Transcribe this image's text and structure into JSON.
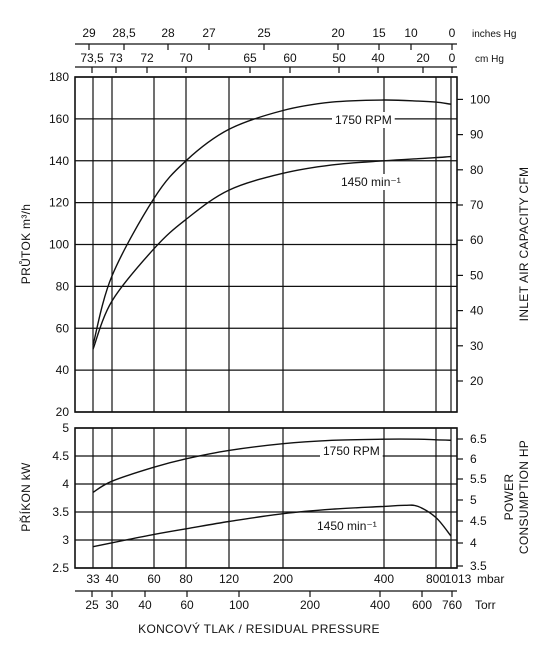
{
  "chart_data": [
    {
      "type": "line",
      "name": "flow",
      "ylabel": "PRŮTOK  m³/h",
      "ylabel_right": "INLET AIR CAPACITY   CFM",
      "ylim": [
        20,
        180
      ],
      "yticks": [
        20,
        40,
        60,
        80,
        100,
        120,
        140,
        160,
        180
      ],
      "yticks_right": [
        20,
        30,
        40,
        50,
        60,
        70,
        80,
        90,
        100
      ],
      "series": [
        {
          "name": "1750 RPM",
          "x_mbar": [
            33,
            40,
            60,
            80,
            120,
            200,
            300,
            400,
            600,
            800,
            1013
          ],
          "values": [
            52,
            85,
            122,
            140,
            155,
            164,
            168,
            169,
            168.5,
            168,
            167
          ]
        },
        {
          "name": "1450 min⁻¹",
          "x_mbar": [
            33,
            40,
            60,
            80,
            120,
            200,
            300,
            400,
            600,
            800,
            1013
          ],
          "values": [
            50,
            73,
            98,
            112,
            126,
            134,
            138,
            140,
            141,
            141.5,
            142
          ]
        }
      ]
    },
    {
      "type": "line",
      "name": "power",
      "ylabel": "PŘÍKON  kW",
      "ylabel_right": [
        "POWER",
        "CONSUMPTION  HP"
      ],
      "ylim": [
        2.5,
        5
      ],
      "yticks": [
        2.5,
        3,
        3.5,
        4,
        4.5,
        5
      ],
      "yticks_right": [
        "3.5",
        "4",
        "4.5",
        "5",
        "5.5",
        "6",
        "6.5"
      ],
      "series": [
        {
          "name": "1750 RPM",
          "x_mbar": [
            33,
            40,
            60,
            80,
            120,
            200,
            300,
            400,
            600,
            800,
            1013
          ],
          "values": [
            3.85,
            4.05,
            4.3,
            4.45,
            4.6,
            4.72,
            4.78,
            4.8,
            4.8,
            4.79,
            4.78
          ]
        },
        {
          "name": "1450 min⁻¹",
          "x_mbar": [
            33,
            40,
            60,
            80,
            120,
            200,
            300,
            400,
            500,
            600,
            800,
            1013
          ],
          "values": [
            2.88,
            2.95,
            3.1,
            3.2,
            3.33,
            3.47,
            3.55,
            3.6,
            3.62,
            3.6,
            3.4,
            3.07
          ]
        }
      ]
    }
  ],
  "axes": {
    "top_inches": {
      "unit": "inches Hg",
      "ticks": [
        "29",
        "28,5",
        "28",
        "27",
        "25",
        "20",
        "15",
        "10",
        "0"
      ]
    },
    "top_cm": {
      "unit": "cm  Hg",
      "ticks": [
        "73,5",
        "73",
        "72",
        "70",
        "65",
        "60",
        "50",
        "40",
        "20",
        "0"
      ]
    },
    "bottom_mbar": {
      "unit": "mbar",
      "ticks": [
        "33",
        "40",
        "60",
        "80",
        "120",
        "200",
        "400",
        "800",
        "1013"
      ]
    },
    "bottom_torr": {
      "unit": "Torr",
      "ticks": [
        "25",
        "30",
        "40",
        "60",
        "100",
        "200",
        "400",
        "600",
        "760"
      ]
    },
    "xlabel": "KONCOVÝ TLAK / RESIDUAL PRESSURE"
  }
}
